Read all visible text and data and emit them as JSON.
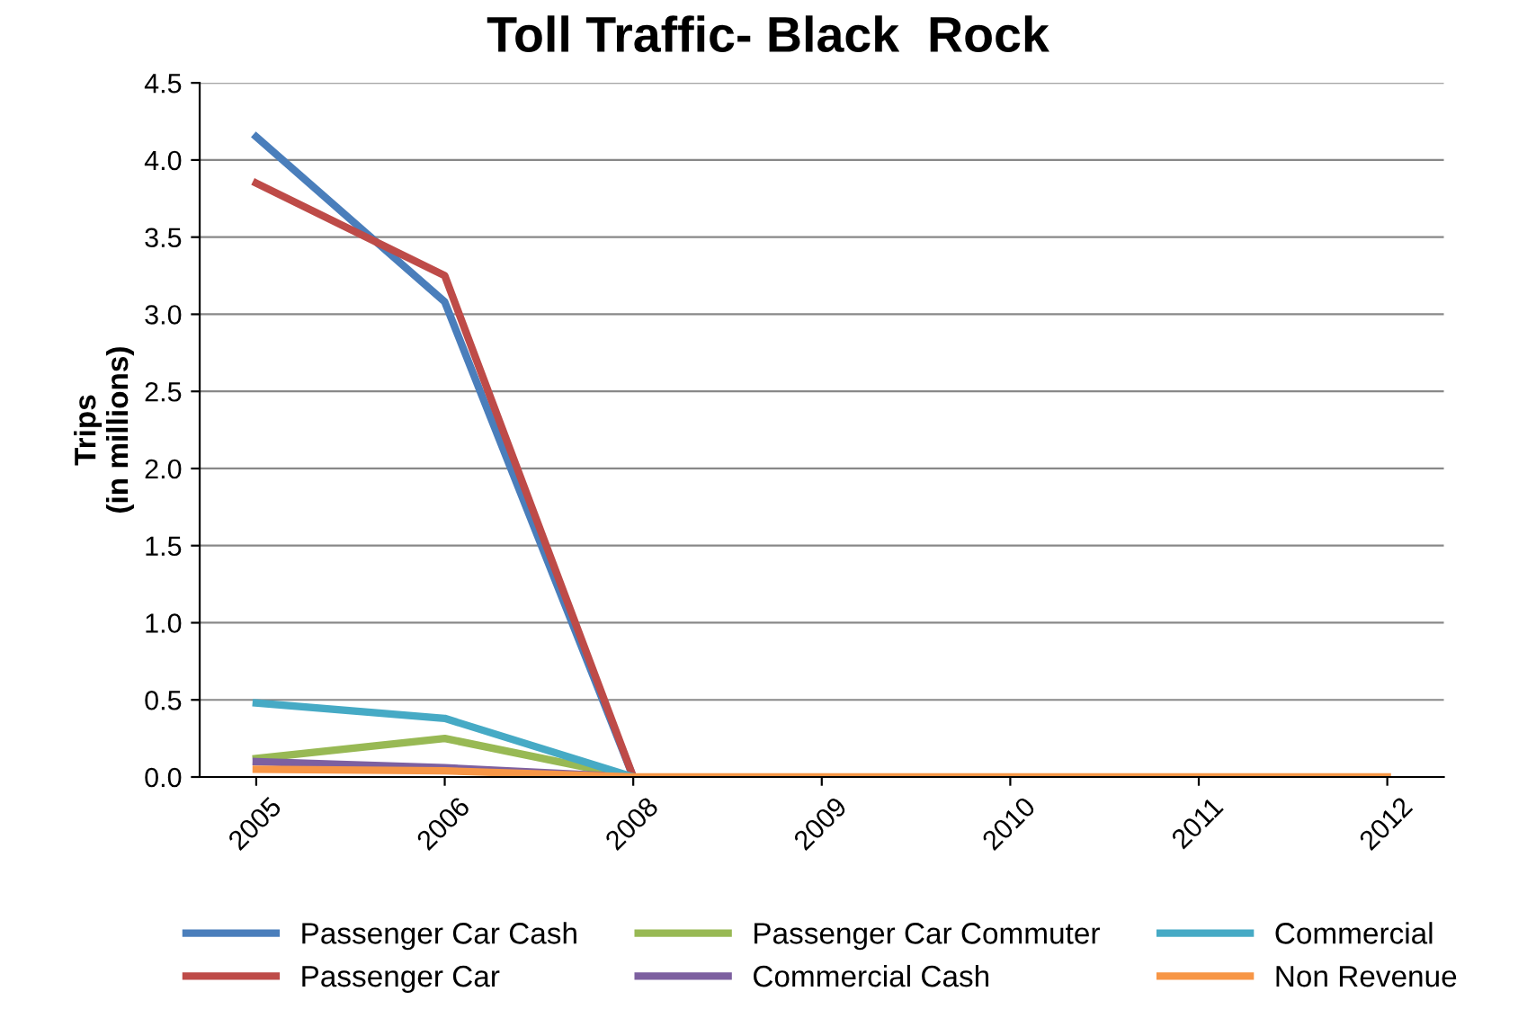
{
  "chart_data": {
    "type": "line",
    "title": "Toll Traffic- Black  Rock",
    "ylabel": "Trips\n(in millions)",
    "categories": [
      "2005",
      "2006",
      "2008",
      "2009",
      "2010",
      "2011",
      "2012"
    ],
    "ylim": [
      0,
      4.5
    ],
    "yticks": [
      {
        "value": 0,
        "label": "0.0"
      },
      {
        "value": 0.5,
        "label": "0.5"
      },
      {
        "value": 1,
        "label": "1.0"
      },
      {
        "value": 1.5,
        "label": "1.5"
      },
      {
        "value": 2,
        "label": "2.0"
      },
      {
        "value": 2.5,
        "label": "2.5"
      },
      {
        "value": 3,
        "label": "3.0"
      },
      {
        "value": 3.5,
        "label": "3.5"
      },
      {
        "value": 4,
        "label": "4.0"
      },
      {
        "value": 4.5,
        "label": "4.5"
      }
    ],
    "grid": "y",
    "legend": "bottom",
    "marker": "none",
    "line_style": "solid",
    "series": [
      {
        "name": "Passenger Car Cash",
        "color": "#4a7ebb",
        "values": [
          4.15,
          3.08,
          0,
          null,
          null,
          null,
          null
        ]
      },
      {
        "name": "Passenger Car",
        "color": "#be4b48",
        "values": [
          3.85,
          3.25,
          0,
          null,
          null,
          null,
          null
        ]
      },
      {
        "name": "Passenger Car Commuter",
        "color": "#98b954",
        "values": [
          0.12,
          0.25,
          0,
          null,
          null,
          null,
          null
        ]
      },
      {
        "name": "Commercial Cash",
        "color": "#7d60a0",
        "values": [
          0.1,
          0.06,
          0,
          null,
          null,
          null,
          null
        ]
      },
      {
        "name": "Commercial",
        "color": "#46aac5",
        "values": [
          0.48,
          0.38,
          0,
          null,
          null,
          null,
          null
        ]
      },
      {
        "name": "Non Revenue",
        "color": "#f79646",
        "values": [
          0.05,
          0.04,
          0,
          0,
          0,
          0,
          0
        ]
      }
    ]
  }
}
